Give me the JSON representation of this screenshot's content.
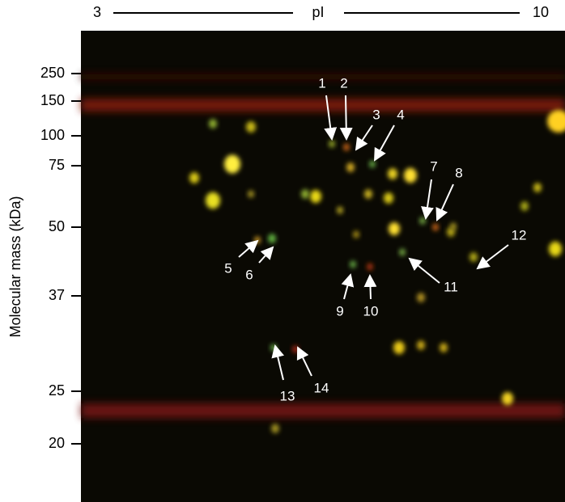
{
  "header": {
    "pI_start": "3",
    "pI_label": "pI",
    "pI_end": "10"
  },
  "y_axis": {
    "label": "Molecular mass (kDa)",
    "ticks": [
      "250",
      "150",
      "100",
      "75",
      "50",
      "37",
      "25",
      "20"
    ]
  },
  "spots": [
    {
      "label": "1"
    },
    {
      "label": "2"
    },
    {
      "label": "3"
    },
    {
      "label": "4"
    },
    {
      "label": "5"
    },
    {
      "label": "6"
    },
    {
      "label": "7"
    },
    {
      "label": "8"
    },
    {
      "label": "9"
    },
    {
      "label": "10"
    },
    {
      "label": "11"
    },
    {
      "label": "12"
    },
    {
      "label": "13"
    },
    {
      "label": "14"
    }
  ]
}
